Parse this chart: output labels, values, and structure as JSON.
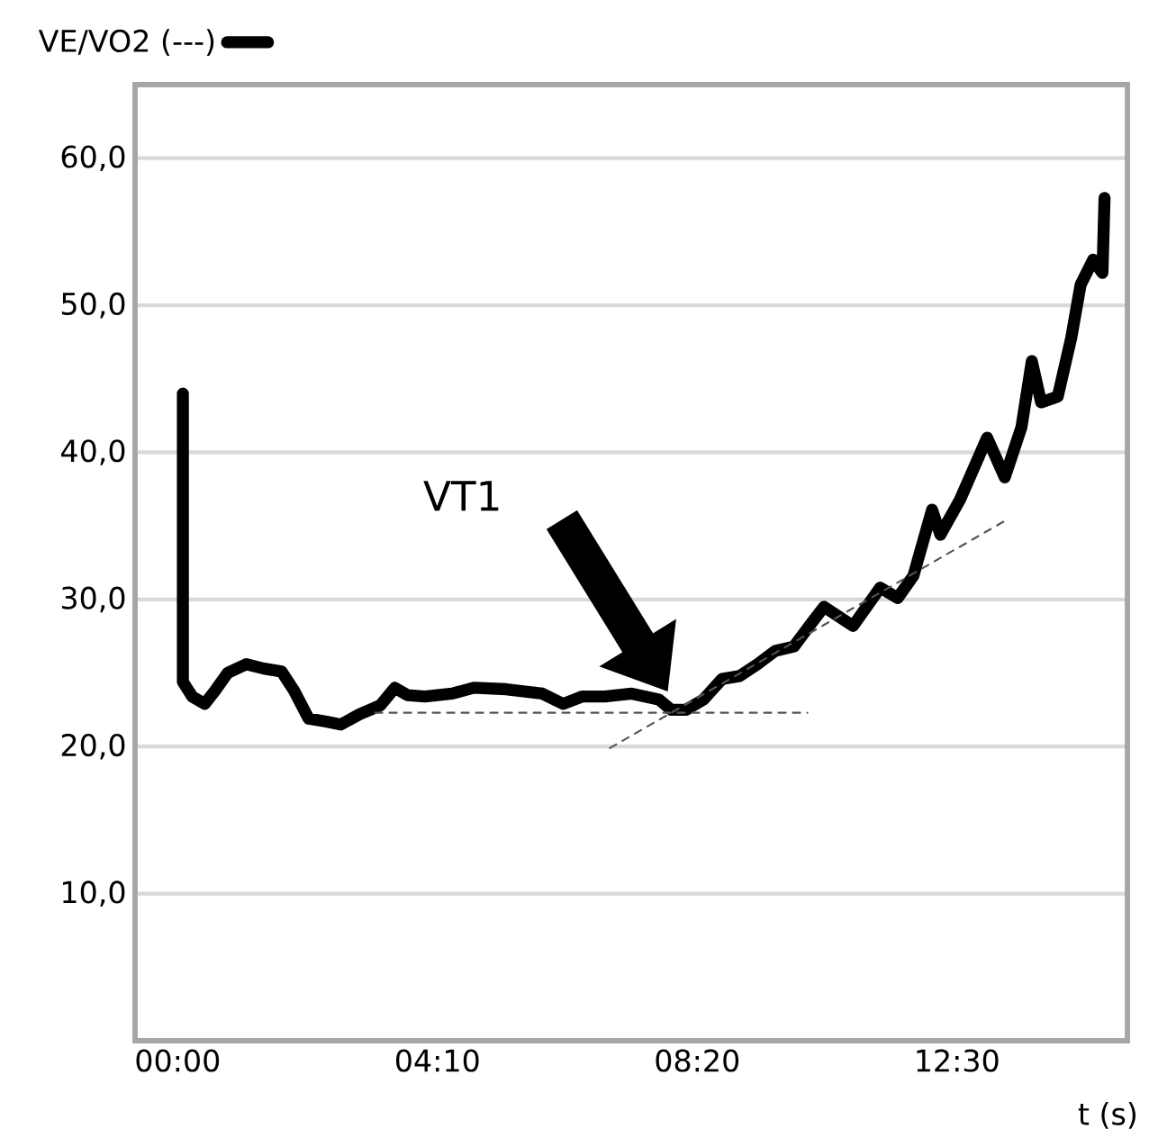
{
  "chart_data": {
    "type": "line",
    "xlabel": "t (s)",
    "xlim": [
      -41,
      914
    ],
    "ylim": [
      0,
      65
    ],
    "xticks": [
      {
        "value": 0,
        "label": "00:00"
      },
      {
        "value": 250,
        "label": "04:10"
      },
      {
        "value": 500,
        "label": "08:20"
      },
      {
        "value": 750,
        "label": "12:30"
      }
    ],
    "yticks": [
      {
        "value": 10,
        "label": "10,0"
      },
      {
        "value": 20,
        "label": "20,0"
      },
      {
        "value": 30,
        "label": "30,0"
      },
      {
        "value": 40,
        "label": "40,0"
      },
      {
        "value": 50,
        "label": "50,0"
      },
      {
        "value": 60,
        "label": "60,0"
      }
    ],
    "grid": "y",
    "legend": "top left",
    "marker": "none",
    "annotations": [
      "VT1"
    ],
    "series": [
      {
        "name": "VE/VO2 (---)",
        "color": "#000000",
        "line_style": "solid",
        "x": [
          5,
          5,
          14,
          26,
          36,
          48,
          66,
          83,
          100,
          112,
          126,
          143,
          157,
          175,
          195,
          209,
          221,
          238,
          264,
          285,
          316,
          351,
          371,
          389,
          411,
          437,
          463,
          475,
          489,
          506,
          524,
          541,
          558,
          575,
          593,
          610,
          622,
          650,
          676,
          693,
          708,
          726,
          734,
          753,
          779,
          796,
          812,
          822,
          831,
          847,
          860,
          869,
          881,
          890,
          892
        ],
        "values": [
          44.0,
          24.4,
          23.4,
          22.9,
          23.8,
          25.0,
          25.6,
          25.3,
          25.1,
          23.8,
          21.9,
          21.7,
          21.5,
          22.2,
          22.8,
          24.0,
          23.5,
          23.4,
          23.6,
          24.0,
          23.9,
          23.6,
          22.9,
          23.4,
          23.4,
          23.6,
          23.2,
          22.5,
          22.5,
          23.2,
          24.6,
          24.8,
          25.6,
          26.5,
          26.8,
          28.4,
          29.5,
          28.2,
          30.8,
          30.1,
          31.6,
          36.1,
          34.4,
          36.8,
          41.0,
          38.3,
          41.7,
          46.2,
          43.4,
          43.8,
          47.8,
          51.4,
          53.1,
          52.2,
          57.3
        ]
      },
      {
        "type": "line",
        "color": "#555555",
        "line_style": "dashed",
        "x": [
          190,
          606
        ],
        "values": [
          22.3,
          22.3
        ]
      },
      {
        "type": "line",
        "color": "#555555",
        "line_style": "dashed",
        "x": [
          416,
          795
        ],
        "values": [
          19.9,
          35.3
        ]
      }
    ]
  }
}
